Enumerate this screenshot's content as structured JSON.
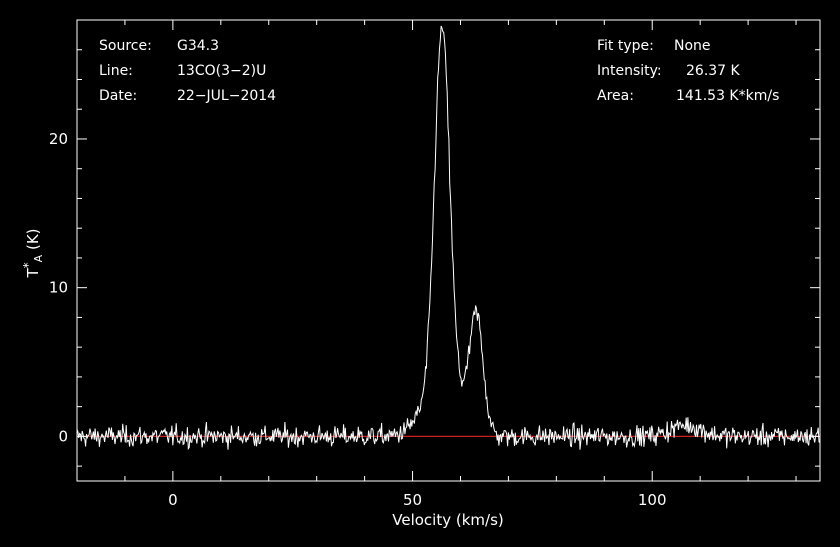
{
  "header": {
    "left": [
      {
        "key": "Source:",
        "value": "G34.3"
      },
      {
        "key": "Line:",
        "value": "13CO(3−2)U"
      },
      {
        "key": "Date:",
        "value": "22−JUL−2014"
      }
    ],
    "right": [
      {
        "key": "Fit type:",
        "value": "None"
      },
      {
        "key": "Intensity:",
        "value": "26.37 K"
      },
      {
        "key": "Area:",
        "value": "141.53 K*km/s"
      }
    ]
  },
  "chart_data": {
    "type": "line",
    "title": "",
    "xlabel": "Velocity (km/s)",
    "ylabel": "T*A (K)",
    "xlim": [
      -20,
      135
    ],
    "ylim": [
      -3,
      28
    ],
    "xticks": [
      0,
      50,
      100
    ],
    "yticks": [
      0,
      10,
      20
    ],
    "xtick_labels": [
      "0",
      "50",
      "100"
    ],
    "ytick_labels": [
      "0",
      "10",
      "20"
    ],
    "grid": false,
    "baseline": 0,
    "colors": {
      "background": "#000000",
      "spectrum": "#ffffff",
      "baseline": "#cc1f1f",
      "frame": "#ffffff"
    },
    "components": [
      {
        "center": 56.2,
        "peak": 26.37,
        "sigma": 1.6
      },
      {
        "center": 63.3,
        "peak": 8.2,
        "sigma": 1.45
      },
      {
        "center": 53.2,
        "peak": 1.8,
        "sigma": 2.8
      },
      {
        "center": 59.8,
        "peak": 1.9,
        "sigma": 1.5
      },
      {
        "center": 107,
        "peak": 0.75,
        "sigma": 3.2
      }
    ],
    "noise_rms": 0.35,
    "channel_width": 0.18
  }
}
